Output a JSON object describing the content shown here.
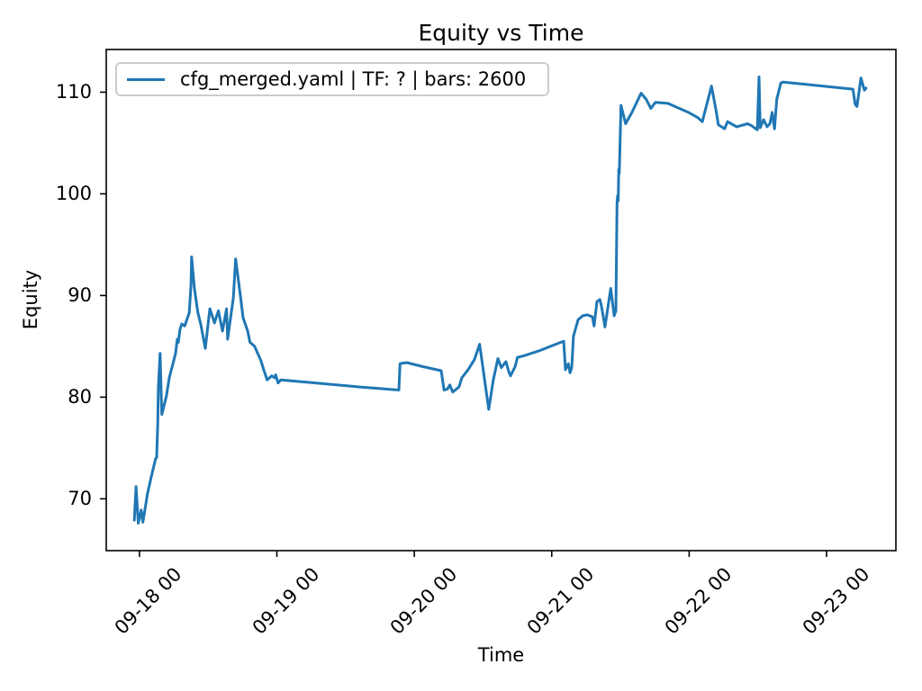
{
  "figure": {
    "title": "Equity vs Time",
    "xlabel": "Time",
    "ylabel": "Equity",
    "legend_label": "cfg_merged.yaml | TF: ? | bars: 2600",
    "line_color": "#1f77b4",
    "axes_color": "#000000",
    "legend_border_color": "#cccccc"
  },
  "chart_data": {
    "type": "line",
    "title": "Equity vs Time",
    "xlabel": "Time",
    "ylabel": "Equity",
    "grid": false,
    "legend_position": "upper left",
    "x_unit": "hours since 09-18 00:00",
    "xlim_hours": [
      -5.8,
      132.1
    ],
    "ylim": [
      64.9,
      114.2
    ],
    "x_tick_hours": [
      0,
      24,
      48,
      72,
      96,
      120
    ],
    "x_tick_labels": [
      "09-18 00",
      "09-19 00",
      "09-20 00",
      "09-21 00",
      "09-22 00",
      "09-23 00"
    ],
    "y_ticks": [
      70,
      80,
      90,
      100,
      110
    ],
    "series": [
      {
        "name": "cfg_merged.yaml | TF: ? | bars: 2600",
        "color": "#1f77b4",
        "points": [
          [
            -0.9,
            67.9
          ],
          [
            -0.6,
            71.2
          ],
          [
            -0.2,
            67.6
          ],
          [
            0.3,
            68.9
          ],
          [
            0.6,
            67.7
          ],
          [
            1.4,
            70.5
          ],
          [
            2.0,
            72.0
          ],
          [
            2.8,
            73.9
          ],
          [
            3.0,
            74.1
          ],
          [
            3.2,
            77.4
          ],
          [
            3.3,
            81.0
          ],
          [
            3.6,
            84.3
          ],
          [
            3.9,
            78.3
          ],
          [
            4.7,
            80.1
          ],
          [
            5.2,
            81.9
          ],
          [
            5.8,
            83.2
          ],
          [
            6.3,
            84.3
          ],
          [
            6.6,
            85.7
          ],
          [
            6.8,
            85.4
          ],
          [
            7.1,
            86.7
          ],
          [
            7.4,
            87.2
          ],
          [
            7.9,
            87.0
          ],
          [
            8.7,
            88.3
          ],
          [
            9.0,
            91.0
          ],
          [
            9.1,
            93.8
          ],
          [
            9.6,
            90.7
          ],
          [
            10.2,
            88.3
          ],
          [
            10.7,
            87.2
          ],
          [
            11.5,
            84.8
          ],
          [
            12.3,
            88.7
          ],
          [
            13.1,
            87.3
          ],
          [
            13.8,
            88.5
          ],
          [
            14.5,
            86.5
          ],
          [
            15.2,
            88.7
          ],
          [
            15.4,
            85.7
          ],
          [
            16.4,
            89.8
          ],
          [
            16.8,
            93.6
          ],
          [
            17.6,
            90.1
          ],
          [
            18.1,
            87.8
          ],
          [
            18.9,
            86.5
          ],
          [
            19.3,
            85.4
          ],
          [
            20.1,
            85.0
          ],
          [
            21.2,
            83.6
          ],
          [
            21.7,
            82.7
          ],
          [
            22.3,
            81.7
          ],
          [
            23.1,
            82.1
          ],
          [
            23.6,
            81.9
          ],
          [
            23.8,
            82.2
          ],
          [
            24.2,
            81.4
          ],
          [
            24.7,
            81.7
          ],
          [
            30.7,
            81.4
          ],
          [
            38.5,
            81.0
          ],
          [
            45.3,
            80.7
          ],
          [
            45.5,
            83.3
          ],
          [
            46.7,
            83.4
          ],
          [
            49.5,
            83.0
          ],
          [
            52.7,
            82.6
          ],
          [
            53.2,
            80.7
          ],
          [
            53.8,
            80.8
          ],
          [
            54.2,
            81.2
          ],
          [
            54.7,
            80.5
          ],
          [
            55.8,
            81.0
          ],
          [
            56.3,
            81.9
          ],
          [
            57.4,
            82.7
          ],
          [
            58.5,
            83.7
          ],
          [
            59.4,
            85.2
          ],
          [
            61.0,
            78.8
          ],
          [
            61.8,
            81.7
          ],
          [
            62.6,
            83.8
          ],
          [
            63.2,
            82.9
          ],
          [
            64.0,
            83.5
          ],
          [
            64.5,
            82.5
          ],
          [
            64.8,
            82.1
          ],
          [
            65.6,
            83.0
          ],
          [
            66.0,
            83.9
          ],
          [
            67.3,
            84.1
          ],
          [
            70.0,
            84.6
          ],
          [
            73.6,
            85.4
          ],
          [
            74.1,
            85.5
          ],
          [
            74.4,
            82.7
          ],
          [
            74.9,
            83.3
          ],
          [
            75.2,
            82.4
          ],
          [
            75.5,
            82.9
          ],
          [
            75.8,
            86.0
          ],
          [
            76.6,
            87.6
          ],
          [
            77.4,
            88.0
          ],
          [
            78.2,
            88.1
          ],
          [
            79.1,
            87.9
          ],
          [
            79.4,
            87.0
          ],
          [
            79.9,
            89.4
          ],
          [
            80.4,
            89.6
          ],
          [
            80.7,
            88.9
          ],
          [
            81.3,
            86.9
          ],
          [
            82.3,
            90.7
          ],
          [
            82.9,
            88.0
          ],
          [
            83.2,
            88.5
          ],
          [
            83.4,
            99.1
          ],
          [
            83.5,
            99.8
          ],
          [
            83.6,
            99.3
          ],
          [
            83.7,
            102.4
          ],
          [
            83.8,
            102.0
          ],
          [
            83.9,
            104.5
          ],
          [
            84.1,
            108.7
          ],
          [
            84.9,
            106.9
          ],
          [
            86.0,
            108.0
          ],
          [
            87.6,
            109.9
          ],
          [
            88.5,
            109.3
          ],
          [
            89.3,
            108.4
          ],
          [
            90.1,
            109.0
          ],
          [
            92.3,
            108.9
          ],
          [
            95.9,
            108.0
          ],
          [
            97.5,
            107.5
          ],
          [
            98.3,
            107.1
          ],
          [
            99.9,
            110.6
          ],
          [
            100.7,
            108.2
          ],
          [
            101.1,
            106.8
          ],
          [
            102.2,
            106.4
          ],
          [
            102.7,
            107.1
          ],
          [
            104.3,
            106.6
          ],
          [
            106.2,
            106.9
          ],
          [
            106.9,
            106.7
          ],
          [
            107.9,
            106.3
          ],
          [
            108.2,
            111.5
          ],
          [
            108.4,
            106.5
          ],
          [
            109.0,
            107.3
          ],
          [
            109.6,
            106.6
          ],
          [
            110.1,
            106.9
          ],
          [
            110.5,
            108.0
          ],
          [
            110.9,
            106.4
          ],
          [
            111.3,
            109.3
          ],
          [
            112.0,
            110.9
          ],
          [
            112.4,
            111.0
          ],
          [
            124.6,
            110.3
          ],
          [
            125.0,
            108.8
          ],
          [
            125.3,
            108.6
          ],
          [
            126.0,
            111.4
          ],
          [
            126.3,
            110.8
          ],
          [
            126.6,
            110.2
          ],
          [
            126.9,
            110.4
          ]
        ]
      }
    ]
  }
}
